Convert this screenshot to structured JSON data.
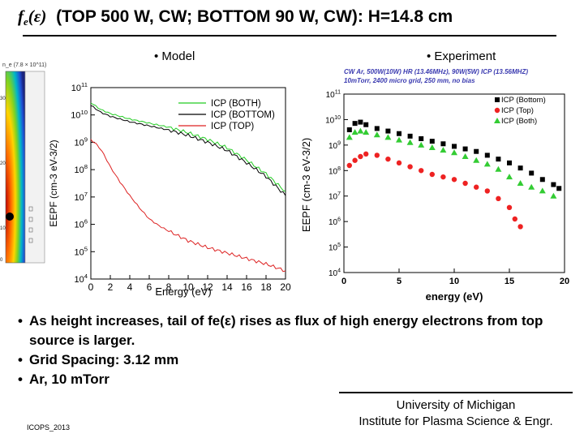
{
  "slide": {
    "title_symbol": "f",
    "title_subscript": "e",
    "title_arg": "(ε)",
    "title_text": "(TOP 500 W, CW; BOTTOM 90 W, CW): H=14.8 cm",
    "model_header": "• Model",
    "experiment_header": "• Experiment",
    "bullets": [
      "As height increases, tail of fe(ε) rises as flux of high energy electrons from top source is larger.",
      "Grid Spacing: 3.12 mm",
      "Ar, 10 mTorr"
    ],
    "university": "University of Michigan",
    "institute": "Institute for Plasma Science & Engr.",
    "conference": "ICOPS_2013"
  },
  "inset": {
    "label": "n_e (7.8 × 10^11)",
    "ticks": [
      "30",
      "20",
      "10",
      "0"
    ]
  },
  "chart_data": [
    {
      "type": "line",
      "title": "Model",
      "xlabel": "Energy (eV)",
      "ylabel": "EEPF (cm-3 eV-3/2)",
      "xlim": [
        0,
        20
      ],
      "ylim_log10": [
        4,
        11
      ],
      "x_ticks": [
        "0",
        "2",
        "4",
        "6",
        "8",
        "10",
        "12",
        "14",
        "16",
        "18",
        "20"
      ],
      "y_ticks": [
        "10^4",
        "10^5",
        "10^6",
        "10^7",
        "10^8",
        "10^9",
        "10^10",
        "10^11"
      ],
      "legend": "top-right",
      "series": [
        {
          "name": "ICP (BOTH)",
          "color": "#22cc22",
          "x": [
            0,
            1,
            2,
            3,
            4,
            6,
            8,
            10,
            12,
            14,
            16,
            18,
            20
          ],
          "values_log10": [
            10.45,
            10.2,
            10.05,
            9.95,
            9.85,
            9.7,
            9.55,
            9.35,
            9.1,
            8.8,
            8.35,
            7.85,
            7.2
          ]
        },
        {
          "name": "ICP (BOTTOM)",
          "color": "#000000",
          "x": [
            0,
            1,
            2,
            3,
            4,
            6,
            8,
            10,
            12,
            14,
            16,
            18,
            20
          ],
          "values_log10": [
            10.35,
            10.1,
            9.95,
            9.85,
            9.75,
            9.6,
            9.45,
            9.25,
            9.0,
            8.7,
            8.25,
            7.75,
            7.05
          ]
        },
        {
          "name": "ICP (TOP)",
          "color": "#dd2222",
          "x": [
            0,
            0.5,
            1,
            1.5,
            2,
            3,
            4,
            5,
            6,
            7,
            8,
            10,
            12,
            14,
            16,
            18,
            20
          ],
          "values_log10": [
            9.1,
            8.95,
            8.75,
            8.45,
            8.1,
            7.55,
            7.05,
            6.6,
            6.2,
            5.95,
            5.75,
            5.4,
            5.15,
            4.95,
            4.75,
            4.55,
            4.3
          ]
        }
      ]
    },
    {
      "type": "scatter",
      "title": "Experiment",
      "subtitle_line1": "CW Ar, 500W(10W) HR (13.46MHz), 90W(5W) ICP (13.56MHZ)",
      "subtitle_line2": "10mTorr, 2400 micro grid, 250 mm, no bias",
      "xlabel": "energy (eV)",
      "ylabel": "EEPF (cm-3 eV-3/2)",
      "xlim": [
        0,
        20
      ],
      "ylim_log10": [
        4,
        11
      ],
      "x_ticks": [
        "0",
        "5",
        "10",
        "15",
        "20"
      ],
      "y_ticks": [
        "10^4",
        "10^5",
        "10^6",
        "10^7",
        "10^8",
        "10^9",
        "10^10",
        "10^11"
      ],
      "legend": "top-right",
      "series": [
        {
          "name": "ICP (Bottom)",
          "color": "#000000",
          "marker": "square",
          "x": [
            0.5,
            1,
            1.5,
            2,
            3,
            4,
            5,
            6,
            7,
            8,
            9,
            10,
            11,
            12,
            13,
            14,
            15,
            16,
            17,
            18,
            19,
            19.5
          ],
          "values_log10": [
            9.6,
            9.85,
            9.9,
            9.8,
            9.65,
            9.55,
            9.45,
            9.35,
            9.25,
            9.15,
            9.05,
            8.95,
            8.85,
            8.75,
            8.6,
            8.45,
            8.3,
            8.1,
            7.9,
            7.65,
            7.45,
            7.3
          ]
        },
        {
          "name": "ICP (Top)",
          "color": "#ee2222",
          "marker": "circle",
          "x": [
            0.5,
            1,
            1.5,
            2,
            3,
            4,
            5,
            6,
            7,
            8,
            9,
            10,
            11,
            12,
            13,
            14,
            15,
            15.5,
            16
          ],
          "values_log10": [
            8.2,
            8.4,
            8.55,
            8.65,
            8.6,
            8.45,
            8.3,
            8.15,
            8.0,
            7.85,
            7.75,
            7.65,
            7.5,
            7.35,
            7.2,
            6.9,
            6.55,
            6.1,
            5.8
          ]
        },
        {
          "name": "ICP (Both)",
          "color": "#33cc33",
          "marker": "triangle",
          "x": [
            0.5,
            1,
            1.5,
            2,
            3,
            4,
            5,
            6,
            7,
            8,
            9,
            10,
            11,
            12,
            13,
            14,
            15,
            16,
            17,
            18,
            19
          ],
          "values_log10": [
            9.3,
            9.5,
            9.55,
            9.5,
            9.4,
            9.3,
            9.2,
            9.1,
            9.0,
            8.9,
            8.8,
            8.7,
            8.55,
            8.4,
            8.25,
            8.05,
            7.75,
            7.5,
            7.35,
            7.2,
            7.0
          ]
        }
      ]
    }
  ]
}
